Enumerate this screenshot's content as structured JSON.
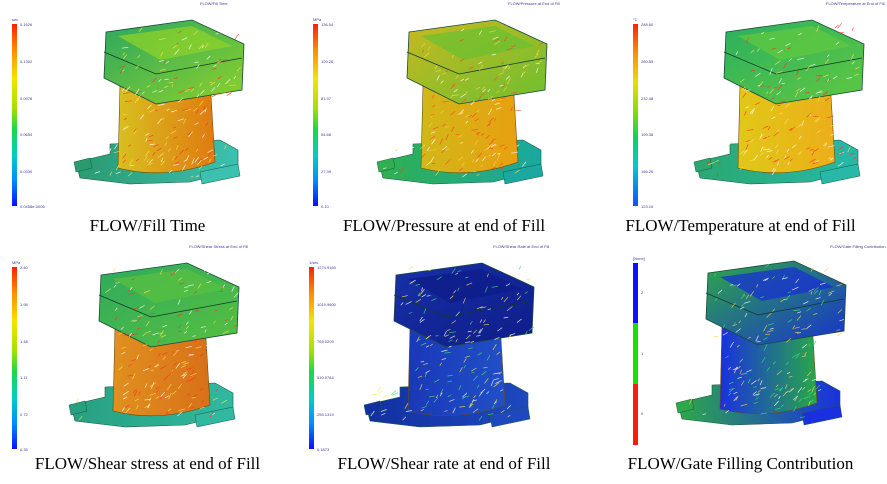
{
  "panels": [
    {
      "id": "fill-time",
      "plot_title": "FLOW/Fill Time",
      "unit": "sec",
      "ticks": [
        "0.1626",
        "0.1302",
        "0.0978",
        "0.0654",
        "0.0330",
        "0.0458e-0006"
      ],
      "caption": "FLOW/Fill Time",
      "scale": "rainbow"
    },
    {
      "id": "pressure-end-of-fill",
      "plot_title": "FLOW/Pressure at End of Fill",
      "unit": "MPa",
      "ticks": [
        "136.54",
        "109.26",
        "81.97",
        "54.68",
        "27.39",
        "0.10"
      ],
      "caption": "FLOW/Pressure at end of Fill",
      "scale": "rainbow"
    },
    {
      "id": "temperature-end-of-fill",
      "plot_title": "FLOW/Temperature at End of Fill",
      "unit": "°C",
      "ticks": [
        "288.60",
        "260.55",
        "232.48",
        "199.38",
        "166.26",
        "123.16"
      ],
      "caption": "FLOW/Temperature at end of Fill",
      "scale": "temperature"
    },
    {
      "id": "shear-stress-end-of-fill",
      "plot_title": "FLOW/Shear Stress at End of Fill",
      "unit": "MPa",
      "ticks": [
        "2.40",
        "1.95",
        "1.48",
        "1.11",
        "0.72",
        "0.35"
      ],
      "caption": "FLOW/Shear stress at end of Fill",
      "scale": "rainbow"
    },
    {
      "id": "shear-rate-end-of-fill",
      "plot_title": "FLOW/Shear Rate at End of Fill",
      "unit": "1/sec",
      "ticks": [
        "1274.9160",
        "1019.9600",
        "765.0209",
        "510.0784",
        "255.1319",
        "0.1873"
      ],
      "caption": "FLOW/Shear rate at end of Fill",
      "scale": "rainbow"
    },
    {
      "id": "gate-filling-contribution",
      "plot_title": "FLOW/Gate Filling Contribution",
      "unit": "[None]",
      "ticks": [
        "2",
        "1",
        "0"
      ],
      "caption": "FLOW/Gate Filling Contribution",
      "scale": "discrete",
      "scale_colors": [
        "#0a12ff",
        "#18e000",
        "#ff1a10"
      ]
    }
  ]
}
